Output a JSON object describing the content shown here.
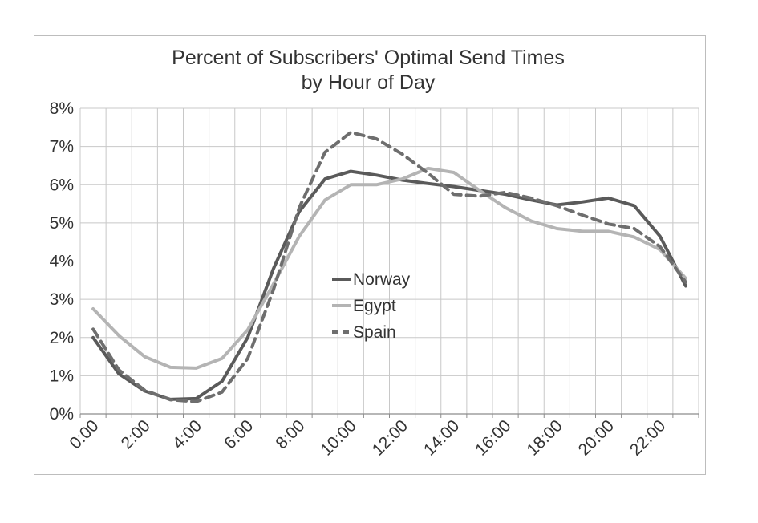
{
  "chart_data": {
    "type": "line",
    "title": "Percent of Subscribers' Optimal Send Times",
    "subtitle": "by Hour of Day",
    "xlabel": "",
    "ylabel": "",
    "y_tick_labels": [
      "0%",
      "1%",
      "2%",
      "3%",
      "4%",
      "5%",
      "6%",
      "7%",
      "8%"
    ],
    "ylim": [
      0,
      8
    ],
    "x_tick_labels": [
      "0:00",
      "2:00",
      "4:00",
      "6:00",
      "8:00",
      "10:00",
      "12:00",
      "14:00",
      "16:00",
      "18:00",
      "20:00",
      "22:00"
    ],
    "x": [
      0,
      1,
      2,
      3,
      4,
      5,
      6,
      7,
      8,
      9,
      10,
      11,
      12,
      13,
      14,
      15,
      16,
      17,
      18,
      19,
      20,
      21,
      22,
      23
    ],
    "grid": true,
    "legend_position": "center",
    "series": [
      {
        "name": "Norway",
        "color": "#5a5a5a",
        "dash": "solid",
        "values": [
          2.0,
          1.05,
          0.6,
          0.38,
          0.4,
          0.85,
          2.0,
          3.8,
          5.3,
          6.15,
          6.35,
          6.25,
          6.12,
          6.03,
          5.95,
          5.85,
          5.75,
          5.6,
          5.47,
          5.55,
          5.65,
          5.45,
          4.65,
          3.35
        ]
      },
      {
        "name": "Egypt",
        "color": "#b4b4b4",
        "dash": "solid",
        "values": [
          2.75,
          2.05,
          1.5,
          1.22,
          1.2,
          1.45,
          2.2,
          3.4,
          4.65,
          5.6,
          6.0,
          6.0,
          6.15,
          6.43,
          6.32,
          5.85,
          5.4,
          5.05,
          4.85,
          4.78,
          4.78,
          4.63,
          4.3,
          3.55
        ]
      },
      {
        "name": "Spain",
        "color": "#6e6e6e",
        "dash": "dashed",
        "values": [
          2.22,
          1.15,
          0.62,
          0.37,
          0.32,
          0.57,
          1.45,
          3.25,
          5.4,
          6.85,
          7.37,
          7.2,
          6.8,
          6.3,
          5.75,
          5.7,
          5.8,
          5.65,
          5.45,
          5.2,
          4.97,
          4.85,
          4.38,
          3.45
        ]
      }
    ]
  }
}
